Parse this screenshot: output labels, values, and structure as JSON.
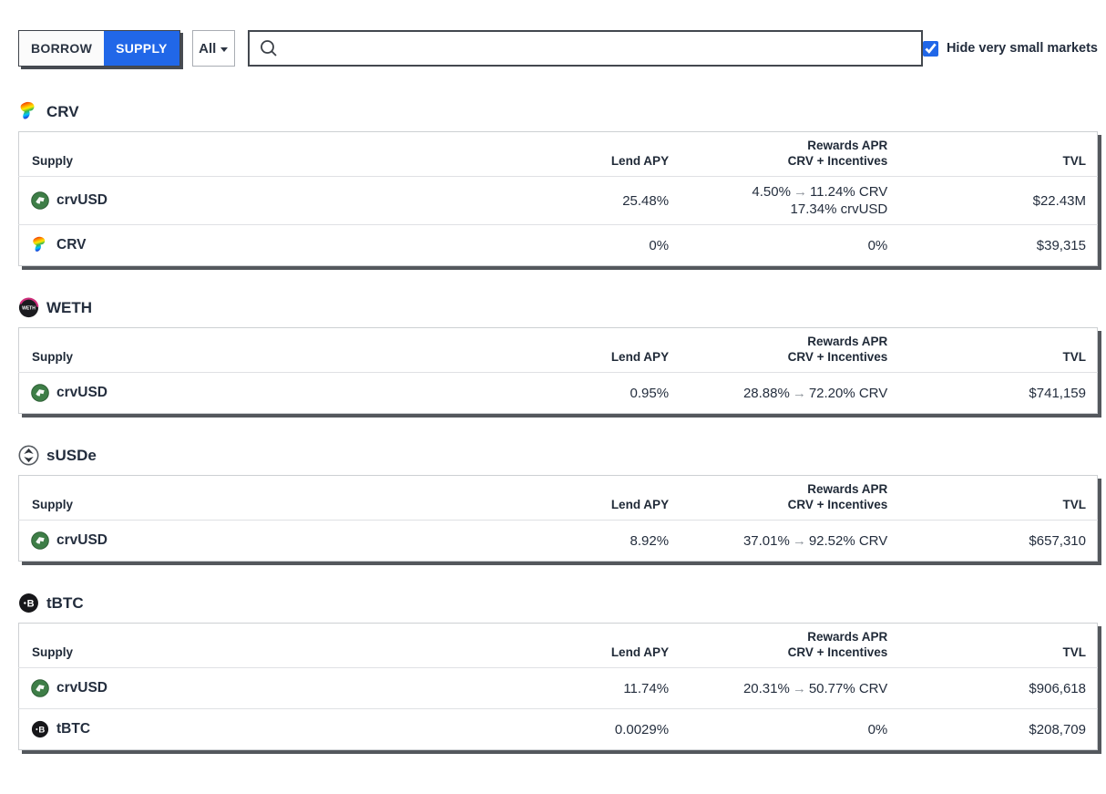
{
  "toolbar": {
    "borrow": "BORROW",
    "supply": "SUPPLY",
    "filter_selected": "All",
    "search_value": "",
    "hide_small_label": "Hide very small markets",
    "hide_small_checked": true
  },
  "table": {
    "headers": {
      "supply": "Supply",
      "lend_apy": "Lend APY",
      "rewards_line1": "Rewards APR",
      "rewards_line2": "CRV + Incentives",
      "tvl": "TVL"
    },
    "rewards_arrow": "→"
  },
  "colors": {
    "accent_blue": "#2167e8",
    "text_dark": "#232d3d",
    "table_border": "#cdd0d3",
    "table_shadow": "#54585d",
    "crvusd_green": "#3e7e47",
    "weth_pink": "#cf2d7b"
  },
  "sections": [
    {
      "title": "CRV",
      "icon": "crv",
      "rows": [
        {
          "asset": "crvUSD",
          "icon": "crvusd",
          "lend_apy": "25.48%",
          "rewards": [
            {
              "from": "4.50%",
              "to": "11.24% CRV"
            },
            {
              "text": "17.34% crvUSD"
            }
          ],
          "tvl": "$22.43M"
        },
        {
          "asset": "CRV",
          "icon": "crv",
          "lend_apy": "0%",
          "rewards": [
            {
              "text": "0%"
            }
          ],
          "tvl": "$39,315"
        }
      ]
    },
    {
      "title": "WETH",
      "icon": "weth",
      "rows": [
        {
          "asset": "crvUSD",
          "icon": "crvusd",
          "lend_apy": "0.95%",
          "rewards": [
            {
              "from": "28.88%",
              "to": "72.20% CRV"
            }
          ],
          "tvl": "$741,159"
        }
      ]
    },
    {
      "title": "sUSDe",
      "icon": "susde",
      "rows": [
        {
          "asset": "crvUSD",
          "icon": "crvusd",
          "lend_apy": "8.92%",
          "rewards": [
            {
              "from": "37.01%",
              "to": "92.52% CRV"
            }
          ],
          "tvl": "$657,310"
        }
      ]
    },
    {
      "title": "tBTC",
      "icon": "tbtc",
      "rows": [
        {
          "asset": "crvUSD",
          "icon": "crvusd",
          "lend_apy": "11.74%",
          "rewards": [
            {
              "from": "20.31%",
              "to": "50.77% CRV"
            }
          ],
          "tvl": "$906,618"
        },
        {
          "asset": "tBTC",
          "icon": "tbtc",
          "lend_apy": "0.0029%",
          "rewards": [
            {
              "text": "0%"
            }
          ],
          "tvl": "$208,709"
        }
      ]
    }
  ]
}
